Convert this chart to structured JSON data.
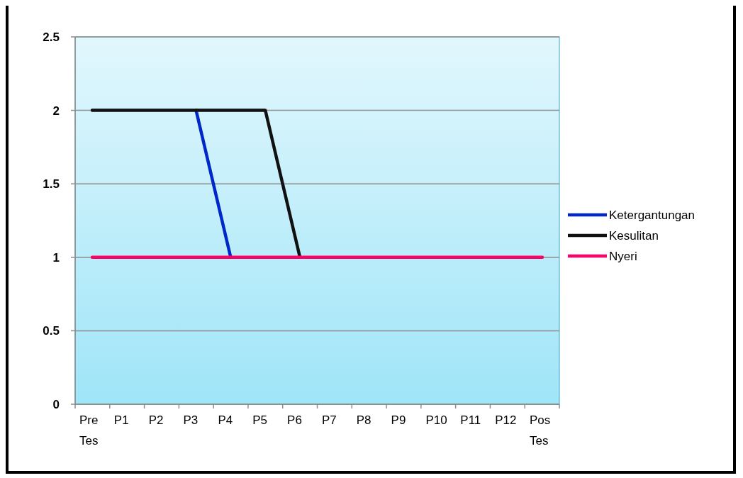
{
  "chart_data": {
    "type": "line",
    "categories": [
      "Pre Tes",
      "P1",
      "P2",
      "P3",
      "P4",
      "P5",
      "P6",
      "P7",
      "P8",
      "P9",
      "P10",
      "P11",
      "P12",
      "Pos Tes"
    ],
    "series": [
      {
        "name": "Ketergantungan",
        "color": "#0028c8",
        "values": [
          null,
          null,
          null,
          2,
          1,
          null,
          null,
          null,
          null,
          null,
          null,
          null,
          null,
          null
        ]
      },
      {
        "name": "Kesulitan",
        "color": "#111111",
        "values": [
          2,
          2,
          2,
          2,
          2,
          2,
          1,
          null,
          null,
          null,
          null,
          null,
          null,
          null
        ]
      },
      {
        "name": "Nyeri",
        "color": "#ff0066",
        "values": [
          1,
          1,
          1,
          1,
          1,
          1,
          1,
          1,
          1,
          1,
          1,
          1,
          1,
          1
        ]
      }
    ],
    "ylim": [
      0,
      2.5
    ],
    "yticks": [
      0,
      0.5,
      1,
      1.5,
      2,
      2.5
    ],
    "grid": "y",
    "legend": "right",
    "marker": "none",
    "line_style": "solid"
  }
}
